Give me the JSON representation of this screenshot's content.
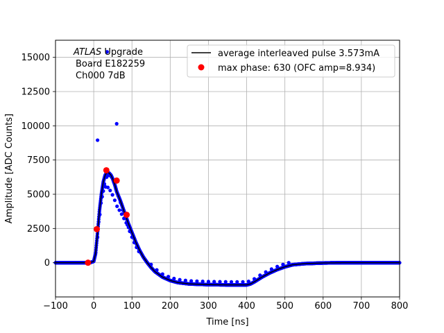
{
  "chart_data": {
    "type": "scatter",
    "title": "",
    "xlabel": "Time [ns]",
    "ylabel": "Amplitude [ADC Counts]",
    "xlim": [
      -100,
      800
    ],
    "ylim": [
      -2500,
      16250
    ],
    "xticks": [
      -100,
      0,
      100,
      200,
      300,
      400,
      500,
      600,
      700,
      800
    ],
    "yticks": [
      0,
      2500,
      5000,
      7500,
      10000,
      12500,
      15000
    ],
    "xtick_labels": [
      "−100",
      "0",
      "100",
      "200",
      "300",
      "400",
      "500",
      "600",
      "700",
      "800"
    ],
    "ytick_labels": [
      "0",
      "2500",
      "5000",
      "7500",
      "10000",
      "12500",
      "15000"
    ],
    "grid": true,
    "legend_position": "top-right",
    "annotation": {
      "italic": "ATLAS",
      "rest": " Upgrade",
      "line2": "Board E182259",
      "line3": "Ch000 7dB"
    },
    "series": [
      {
        "name": "average interleaved pulse 3.573mA",
        "kind": "line",
        "color": "#000000",
        "x": [
          -100,
          -10,
          0,
          5,
          10,
          15,
          20,
          25,
          30,
          35,
          40,
          45,
          50,
          55,
          60,
          70,
          80,
          90,
          100,
          110,
          120,
          130,
          140,
          150,
          160,
          180,
          200,
          220,
          250,
          300,
          350,
          400,
          410,
          420,
          440,
          460,
          480,
          500,
          520,
          550,
          600,
          650,
          700,
          800
        ],
        "y": [
          0,
          0,
          100,
          700,
          2200,
          3800,
          5000,
          5900,
          6400,
          6600,
          6550,
          6400,
          6100,
          5700,
          5200,
          4500,
          3700,
          2900,
          2200,
          1500,
          900,
          400,
          0,
          -350,
          -650,
          -1050,
          -1300,
          -1450,
          -1550,
          -1600,
          -1620,
          -1620,
          -1550,
          -1400,
          -1050,
          -750,
          -500,
          -300,
          -150,
          -70,
          -20,
          0,
          0,
          0
        ]
      },
      {
        "name": "",
        "kind": "points",
        "color": "#0000ff",
        "outliers_x": [
          10,
          35,
          60
        ],
        "outliers_y": [
          8950,
          15400,
          10150
        ]
      },
      {
        "name": "max phase: 630 (OFC amp=8.934)",
        "kind": "marker",
        "color": "#ff0000",
        "x": [
          -15,
          8,
          33,
          60,
          86
        ],
        "y": [
          0,
          2450,
          6750,
          6000,
          3500
        ]
      }
    ]
  }
}
